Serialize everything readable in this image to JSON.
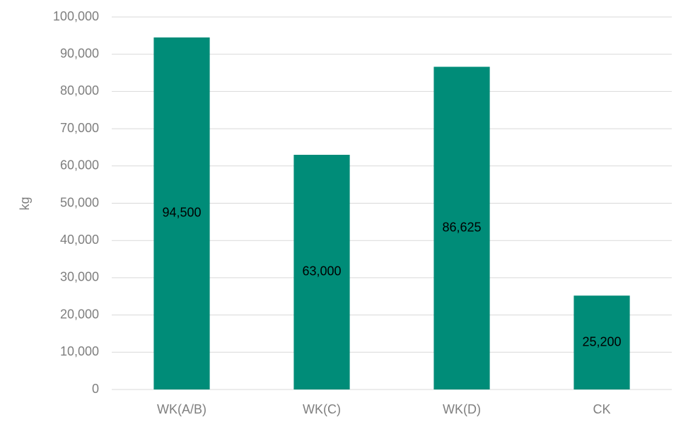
{
  "chart_data": {
    "type": "bar",
    "ylabel": "kg",
    "categories": [
      "WK(A/B)",
      "WK(C)",
      "WK(D)",
      "CK"
    ],
    "values": [
      94500,
      63000,
      86625,
      25200
    ],
    "value_labels": [
      "94,500",
      "63,000",
      "86,625",
      "25,200"
    ],
    "color": "#008c78",
    "ylim": [
      0,
      100000
    ],
    "yticks": [
      0,
      {
        "value": 10000,
        "label": "10,000"
      },
      {
        "value": 20000,
        "label": "20,000"
      },
      {
        "value": 30000,
        "label": "30,000"
      },
      {
        "value": 40000,
        "label": "40,000"
      },
      {
        "value": 50000,
        "label": "50,000"
      },
      {
        "value": 60000,
        "label": "60,000"
      },
      {
        "value": 70000,
        "label": "70,000"
      },
      {
        "value": 80000,
        "label": "80,000"
      },
      {
        "value": 90000,
        "label": "90,000"
      },
      {
        "value": 100000,
        "label": "100,000"
      }
    ],
    "grid": true
  }
}
